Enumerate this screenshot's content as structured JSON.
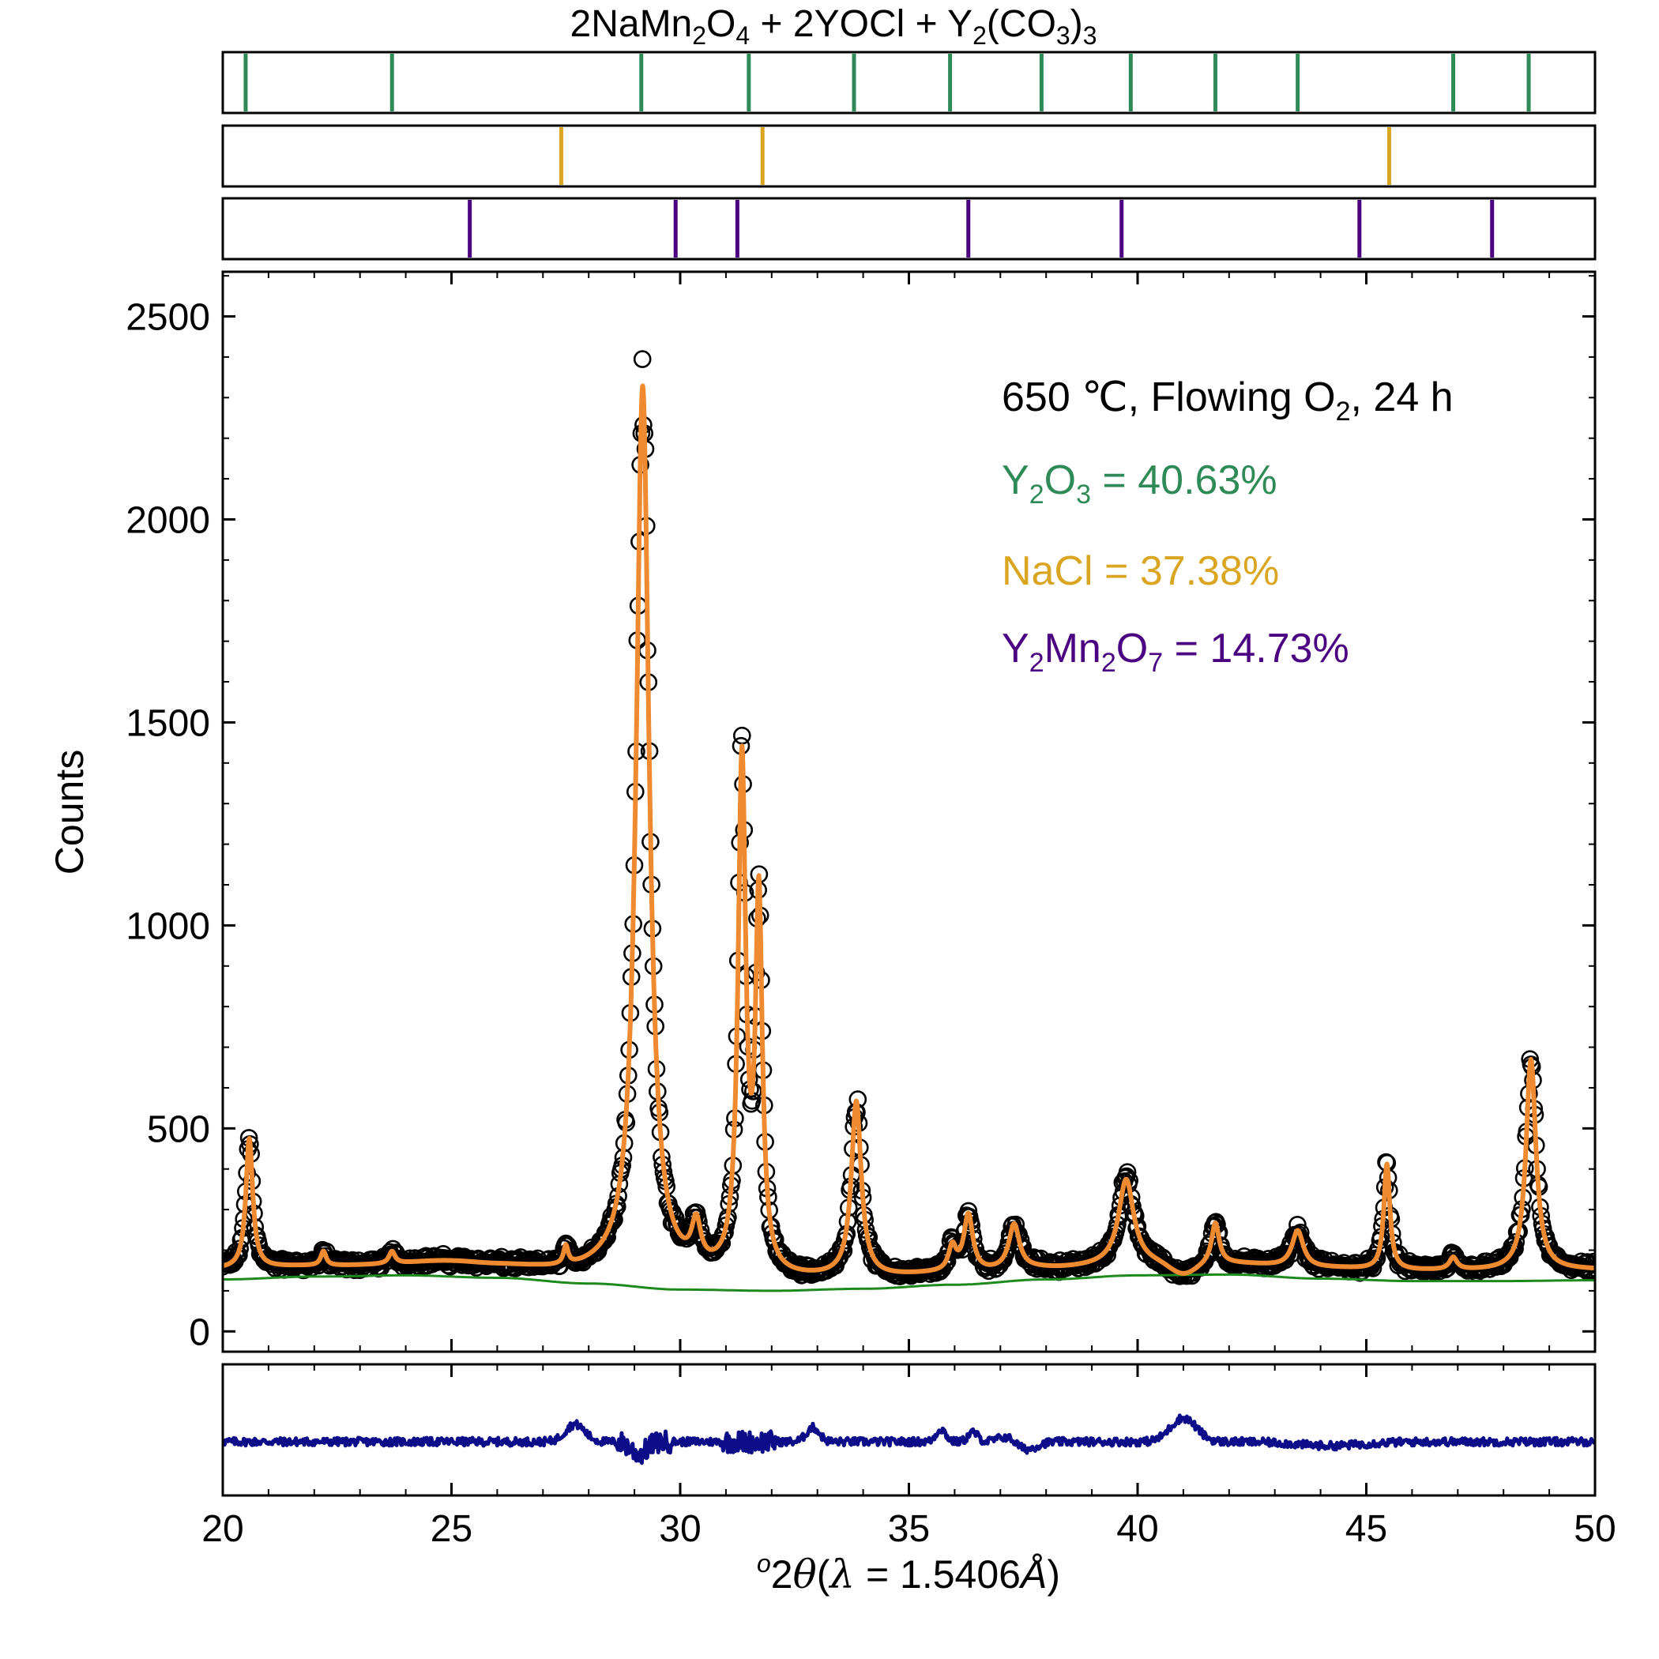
{
  "chart_data": {
    "type": "line",
    "title_parts": {
      "t1": "2NaMn",
      "s1": "2",
      "t2": "O",
      "s2": "4",
      "t3": " + 2YOCl + Y",
      "s3": "2",
      "t4": "(CO",
      "s4": "3",
      "t5": ")",
      "s5": "3"
    },
    "xlabel": {
      "sup": "o",
      "main": "2",
      "theta": "θ",
      "paren_open": "(",
      "lambda": "λ",
      "eq": " = 1.5406",
      "angstrom": "Å",
      "paren_close": ")"
    },
    "ylabel": "Counts",
    "xlim": [
      20,
      50
    ],
    "ylim": [
      -50,
      2610
    ],
    "x_ticks": [
      20,
      25,
      30,
      35,
      40,
      45,
      50
    ],
    "x_tick_labels": [
      "20",
      "25",
      "30",
      "35",
      "40",
      "45",
      "50"
    ],
    "y_ticks": [
      0,
      500,
      1000,
      1500,
      2000,
      2500
    ],
    "y_tick_labels": [
      "0",
      "500",
      "1000",
      "1500",
      "2000",
      "2500"
    ],
    "annotations": {
      "condition": {
        "a": "650 ℃, Flowing O",
        "s": "2",
        "b": ", 24 h"
      },
      "y2o3": {
        "a": "Y",
        "s1": "2",
        "b": "O",
        "s2": "3",
        "c": " = 40.63%"
      },
      "nacl": "NaCl = 37.38%",
      "y2mn2o7": {
        "a": "Y",
        "s1": "2",
        "b": "Mn",
        "s2": "2",
        "c": "O",
        "s3": "7",
        "d": " = 14.73%"
      }
    },
    "colors": {
      "observed": "#000000",
      "calculated": "#f08a30",
      "background": "#1e8a1e",
      "difference": "#0d0d8a",
      "y2o3": "#2e8b57",
      "nacl": "#daa520",
      "y2mn2o7": "#4b0082"
    },
    "series": [
      {
        "kind": "calculated",
        "peaks": [
          [
            20.58,
            320,
            0.09
          ],
          [
            22.2,
            35,
            0.07
          ],
          [
            23.7,
            30,
            0.08
          ],
          [
            27.5,
            45,
            0.06
          ],
          [
            29.18,
            2190,
            0.17
          ],
          [
            30.35,
            100,
            0.12
          ],
          [
            31.35,
            1250,
            0.1
          ],
          [
            31.72,
            900,
            0.09
          ],
          [
            33.85,
            430,
            0.13
          ],
          [
            35.95,
            60,
            0.1
          ],
          [
            36.3,
            140,
            0.12
          ],
          [
            37.3,
            110,
            0.14
          ],
          [
            39.75,
            210,
            0.2
          ],
          [
            41.7,
            100,
            0.1
          ],
          [
            43.5,
            90,
            0.15
          ],
          [
            45.45,
            260,
            0.08
          ],
          [
            46.9,
            30,
            0.1
          ],
          [
            48.6,
            520,
            0.13
          ]
        ],
        "baseline_dips": [
          [
            41.0,
            -30,
            0.4
          ],
          [
            25.0,
            10,
            1.0
          ]
        ]
      },
      {
        "kind": "background",
        "x": [
          20,
          22,
          24,
          26,
          28,
          30,
          32,
          34,
          36,
          38,
          40,
          42,
          44,
          46,
          48,
          50
        ],
        "y": [
          128,
          135,
          138,
          132,
          118,
          103,
          100,
          105,
          115,
          128,
          138,
          140,
          130,
          124,
          124,
          126
        ]
      },
      {
        "kind": "difference",
        "features": [
          [
            27.7,
            22,
            0.3
          ],
          [
            29.1,
            -15,
            0.25
          ],
          [
            32.9,
            18,
            0.2
          ],
          [
            35.7,
            16,
            0.15
          ],
          [
            36.4,
            12,
            0.15
          ],
          [
            37.2,
            10,
            0.3
          ],
          [
            37.5,
            -12,
            0.35
          ],
          [
            41.0,
            30,
            0.4
          ],
          [
            44.2,
            -5,
            1.0
          ]
        ]
      }
    ],
    "reflections": {
      "y2o3": [
        20.5,
        23.7,
        29.15,
        31.5,
        33.8,
        35.9,
        37.9,
        39.85,
        41.7,
        43.5,
        46.9,
        48.55
      ],
      "nacl": [
        27.4,
        31.8,
        45.5
      ],
      "y2mn2o7": [
        25.4,
        29.9,
        31.25,
        36.3,
        39.65,
        44.85,
        47.75
      ]
    }
  }
}
